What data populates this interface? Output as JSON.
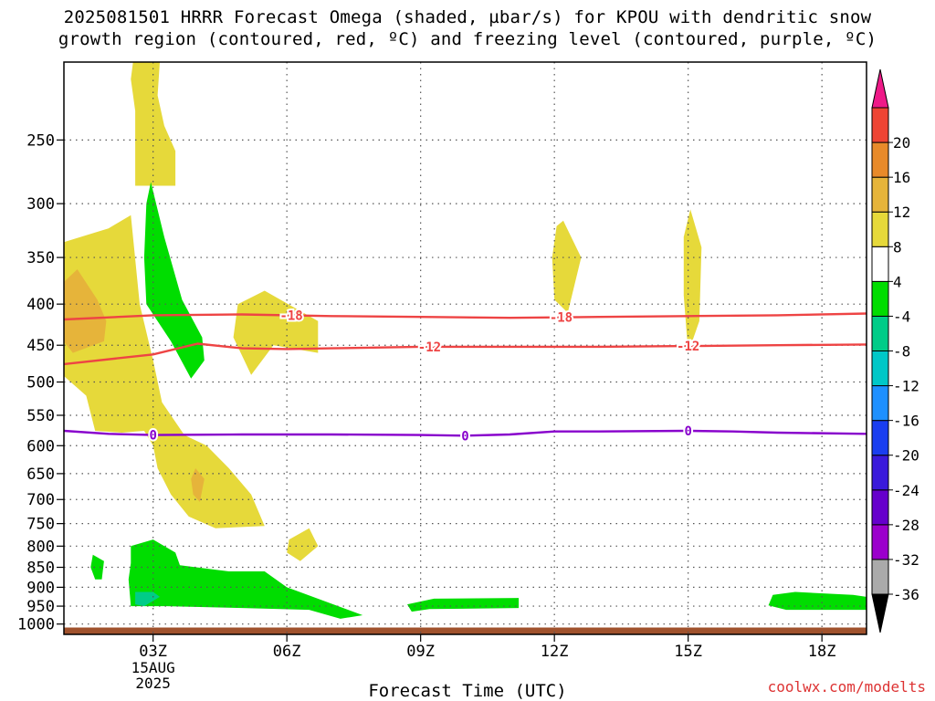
{
  "title_line1": "2025081501 HRRR Forecast Omega (shaded, µbar/s) for KPOU with dendritic snow",
  "title_line2": "growth region (contoured, red, ºC) and freezing level (contoured, purple, ºC)",
  "credit": "coolwx.com/modelts",
  "chart_data": {
    "type": "contour",
    "title": "2025081501 HRRR Forecast Omega (shaded, µbar/s) for KPOU with dendritic snow growth region (contoured, red, ºC) and freezing level (contoured, purple, ºC)",
    "xlabel": "Forecast Time (UTC)",
    "ylabel": "",
    "x_range_hours": [
      1.0,
      19.0
    ],
    "x_ticks": [
      {
        "hour": 3,
        "label": "03Z",
        "sublabels": [
          "15AUG",
          "2025"
        ]
      },
      {
        "hour": 6,
        "label": "06Z"
      },
      {
        "hour": 9,
        "label": "09Z"
      },
      {
        "hour": 12,
        "label": "12Z"
      },
      {
        "hour": 15,
        "label": "15Z"
      },
      {
        "hour": 18,
        "label": "18Z"
      }
    ],
    "y_scale": "log",
    "y_range_hPa": [
      1030,
      200
    ],
    "y_ticks": [
      250,
      300,
      350,
      400,
      450,
      500,
      550,
      600,
      650,
      700,
      750,
      800,
      850,
      900,
      950,
      1000
    ],
    "grid": true,
    "colorbar": {
      "levels": [
        -36,
        -32,
        -28,
        -24,
        -20,
        -16,
        -12,
        -8,
        -4,
        4,
        8,
        12,
        16,
        20
      ],
      "colors": [
        "#aaaaaa",
        "#9b00cc",
        "#6600cc",
        "#3a1adb",
        "#1a3ef0",
        "#1e90ff",
        "#00c8c8",
        "#00cc88",
        "#00dd00",
        "#ffffff",
        "#e6d93a",
        "#e6b43a",
        "#e88a2a",
        "#ee4433"
      ],
      "over_color": "#ee1a88",
      "under_color": "#000000"
    },
    "omega_regions": [
      {
        "color": "#e6d93a",
        "value_range": [
          4,
          8
        ],
        "points": [
          [
            2.55,
            200
          ],
          [
            3.15,
            200
          ],
          [
            3.1,
            220
          ],
          [
            3.25,
            240
          ],
          [
            3.5,
            258
          ],
          [
            3.5,
            285
          ],
          [
            2.6,
            285
          ],
          [
            2.6,
            255
          ],
          [
            2.6,
            230
          ],
          [
            2.5,
            210
          ]
        ]
      },
      {
        "color": "#e6d93a",
        "value_range": [
          4,
          8
        ],
        "points": [
          [
            1.5,
            520
          ],
          [
            0.6,
            470
          ],
          [
            0.5,
            420
          ],
          [
            0.55,
            380
          ],
          [
            1.0,
            335
          ],
          [
            2.0,
            322
          ],
          [
            2.5,
            310
          ],
          [
            2.7,
            400
          ],
          [
            3.0,
            470
          ],
          [
            3.2,
            530
          ],
          [
            3.7,
            582
          ],
          [
            4.2,
            600
          ],
          [
            4.7,
            640
          ],
          [
            5.2,
            690
          ],
          [
            5.5,
            755
          ],
          [
            4.4,
            760
          ],
          [
            3.8,
            735
          ],
          [
            3.4,
            690
          ],
          [
            3.1,
            640
          ],
          [
            3.0,
            600
          ],
          [
            2.8,
            575
          ],
          [
            2.3,
            578
          ],
          [
            1.7,
            575
          ]
        ]
      },
      {
        "color": "#e6b43a",
        "value_range": [
          8,
          12
        ],
        "points": [
          [
            0.9,
            380
          ],
          [
            1.3,
            362
          ],
          [
            1.75,
            395
          ],
          [
            1.95,
            420
          ],
          [
            1.9,
            445
          ],
          [
            1.2,
            460
          ],
          [
            0.85,
            435
          ],
          [
            0.8,
            400
          ]
        ]
      },
      {
        "color": "#e6b43a",
        "value_range": [
          8,
          12
        ],
        "points": [
          [
            3.95,
            640
          ],
          [
            4.15,
            660
          ],
          [
            4.05,
            705
          ],
          [
            3.9,
            690
          ],
          [
            3.85,
            660
          ]
        ]
      },
      {
        "color": "#00dd00",
        "value_range": [
          -8,
          -4
        ],
        "points": [
          [
            2.95,
            282
          ],
          [
            3.25,
            330
          ],
          [
            3.65,
            395
          ],
          [
            4.1,
            440
          ],
          [
            4.15,
            470
          ],
          [
            3.85,
            495
          ],
          [
            3.4,
            445
          ],
          [
            2.85,
            400
          ],
          [
            2.8,
            350
          ],
          [
            2.85,
            300
          ]
        ]
      },
      {
        "color": "#e6d93a",
        "value_range": [
          4,
          8
        ],
        "points": [
          [
            4.9,
            400
          ],
          [
            5.5,
            385
          ],
          [
            6.7,
            420
          ],
          [
            6.7,
            460
          ],
          [
            5.7,
            450
          ],
          [
            5.2,
            490
          ],
          [
            4.8,
            440
          ]
        ]
      },
      {
        "color": "#e6d93a",
        "value_range": [
          4,
          8
        ],
        "points": [
          [
            6.05,
            785
          ],
          [
            6.5,
            760
          ],
          [
            6.7,
            800
          ],
          [
            6.3,
            835
          ],
          [
            6.0,
            815
          ]
        ]
      },
      {
        "color": "#e6d93a",
        "value_range": [
          4,
          8
        ],
        "points": [
          [
            12.2,
            315
          ],
          [
            12.6,
            350
          ],
          [
            12.3,
            410
          ],
          [
            12.0,
            395
          ],
          [
            11.95,
            350
          ],
          [
            12.05,
            320
          ]
        ]
      },
      {
        "color": "#e6d93a",
        "value_range": [
          4,
          8
        ],
        "points": [
          [
            15.05,
            305
          ],
          [
            15.3,
            340
          ],
          [
            15.25,
            420
          ],
          [
            15.0,
            460
          ],
          [
            14.9,
            390
          ],
          [
            14.9,
            330
          ]
        ]
      },
      {
        "color": "#00dd00",
        "value_range": [
          -8,
          -4
        ],
        "points": [
          [
            1.65,
            820
          ],
          [
            1.9,
            835
          ],
          [
            1.85,
            880
          ],
          [
            1.7,
            880
          ],
          [
            1.6,
            850
          ]
        ]
      },
      {
        "color": "#00dd00",
        "value_range": [
          -8,
          -4
        ],
        "points": [
          [
            2.5,
            800
          ],
          [
            3.0,
            785
          ],
          [
            3.5,
            815
          ],
          [
            3.6,
            845
          ],
          [
            4.7,
            860
          ],
          [
            5.5,
            860
          ],
          [
            6.0,
            900
          ],
          [
            7.7,
            975
          ],
          [
            7.2,
            985
          ],
          [
            6.5,
            960
          ],
          [
            5.0,
            955
          ],
          [
            3.3,
            950
          ],
          [
            2.5,
            950
          ],
          [
            2.45,
            880
          ],
          [
            2.5,
            840
          ]
        ]
      },
      {
        "color": "#00cc88",
        "value_range": [
          -12,
          -8
        ],
        "points": [
          [
            2.6,
            912
          ],
          [
            3.0,
            912
          ],
          [
            3.15,
            925
          ],
          [
            2.8,
            950
          ],
          [
            2.6,
            945
          ]
        ]
      },
      {
        "color": "#00dd00",
        "value_range": [
          -8,
          -4
        ],
        "points": [
          [
            8.7,
            945
          ],
          [
            9.3,
            930
          ],
          [
            11.2,
            928
          ],
          [
            11.2,
            955
          ],
          [
            9.2,
            958
          ],
          [
            8.8,
            965
          ]
        ]
      },
      {
        "color": "#00dd00",
        "value_range": [
          -8,
          -4
        ],
        "points": [
          [
            16.9,
            920
          ],
          [
            17.4,
            912
          ],
          [
            18.7,
            920
          ],
          [
            19.0,
            925
          ],
          [
            19.0,
            960
          ],
          [
            17.2,
            960
          ],
          [
            16.8,
            948
          ]
        ]
      }
    ],
    "surface": {
      "color": "#a0522d",
      "hPa": 1010,
      "points": [
        [
          1.0,
          1010
        ],
        [
          9.5,
          1010
        ],
        [
          9.6,
          1012
        ],
        [
          19.0,
          1012
        ]
      ]
    },
    "contours": [
      {
        "name": "-18",
        "color": "#ee4444",
        "line": [
          [
            1.0,
            418
          ],
          [
            3.0,
            413
          ],
          [
            5.0,
            412
          ],
          [
            7.0,
            414
          ],
          [
            9.0,
            415
          ],
          [
            11.0,
            416
          ],
          [
            13.0,
            415
          ],
          [
            15.0,
            414
          ],
          [
            17.0,
            413
          ],
          [
            19.0,
            411
          ]
        ],
        "labels": [
          {
            "x": 6.1,
            "text": "-18"
          },
          {
            "x": 12.15,
            "text": "-18"
          }
        ]
      },
      {
        "name": "-12",
        "color": "#ee4444",
        "line": [
          [
            1.0,
            475
          ],
          [
            3.0,
            462
          ],
          [
            4.0,
            448
          ],
          [
            5.0,
            454
          ],
          [
            6.0,
            455
          ],
          [
            7.0,
            454
          ],
          [
            9.0,
            452
          ],
          [
            11.0,
            452
          ],
          [
            13.0,
            452
          ],
          [
            15.0,
            451
          ],
          [
            17.0,
            450
          ],
          [
            19.0,
            449
          ]
        ],
        "labels": [
          {
            "x": 9.2,
            "text": "-12"
          },
          {
            "x": 15.0,
            "text": "-12"
          }
        ]
      },
      {
        "name": "0",
        "color": "#8800cc",
        "line": [
          [
            1.0,
            575
          ],
          [
            2.0,
            580
          ],
          [
            3.0,
            582
          ],
          [
            5.0,
            581
          ],
          [
            7.0,
            581
          ],
          [
            9.0,
            582
          ],
          [
            10.0,
            583
          ],
          [
            11.0,
            581
          ],
          [
            12.0,
            576
          ],
          [
            13.0,
            576
          ],
          [
            15.0,
            575
          ],
          [
            16.0,
            576
          ],
          [
            17.0,
            578
          ],
          [
            19.0,
            580
          ]
        ],
        "labels": [
          {
            "x": 3.0,
            "text": "0"
          },
          {
            "x": 10.0,
            "text": "0"
          },
          {
            "x": 15.0,
            "text": "0"
          }
        ]
      }
    ]
  }
}
